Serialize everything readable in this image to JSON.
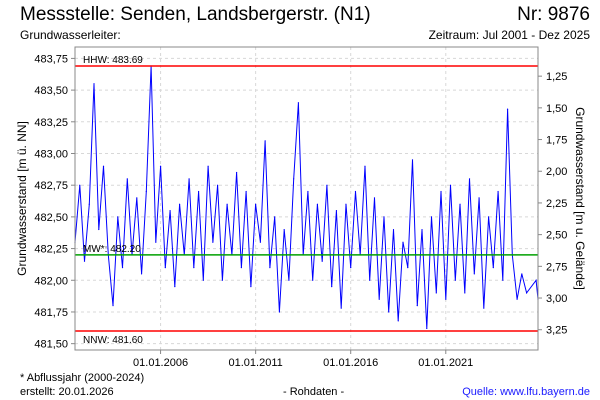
{
  "header": {
    "title": "Messstelle: Senden, Landsbergerstr. (N1)",
    "number": "Nr: 9876",
    "aquifer": "Grundwasserleiter:",
    "period": "Zeitraum: Jul 2001 - Dez 2025"
  },
  "footer": {
    "note": "* Abflussjahr (2000-2024)",
    "created": "erstellt:  20.01.2026",
    "data_type": "- Rohdaten -",
    "source": "Quelle: www.lfu.bayern.de"
  },
  "colors": {
    "series": "#0000ff",
    "hhw": "#ff0000",
    "nnw": "#ff0000",
    "mw": "#00a000",
    "grid": "#d8d8d8"
  },
  "chart_data": {
    "type": "line",
    "ylabel": "Grundwasserstand [m ü. NN]",
    "ylabel_right": "Grundwasserstand [m u. Gelände]",
    "ylim": [
      481.45,
      483.84
    ],
    "xlim": [
      2001.5,
      2025.85
    ],
    "ground_level": 484.86,
    "yticks": [
      481.5,
      481.75,
      482.0,
      482.25,
      482.5,
      482.75,
      483.0,
      483.25,
      483.5,
      483.75
    ],
    "ytick_labels": [
      "481,50",
      "481,75",
      "482,00",
      "482,25",
      "482,50",
      "482,75",
      "483,00",
      "483,25",
      "483,50",
      "483,75"
    ],
    "yticks_right": [
      1.25,
      1.5,
      1.75,
      2.0,
      2.25,
      2.5,
      2.75,
      3.0,
      3.25
    ],
    "ytick_labels_right": [
      "1,25",
      "1,50",
      "1,75",
      "2,00",
      "2,25",
      "2,50",
      "2,75",
      "3,00",
      "3,25"
    ],
    "xticks": [
      2006,
      2011,
      2016,
      2021
    ],
    "xtick_labels": [
      "01.01.2006",
      "01.01.2011",
      "01.01.2016",
      "01.01.2021"
    ],
    "reference_lines": [
      {
        "name": "HHW",
        "label": "HHW: 483.69",
        "value": 483.69
      },
      {
        "name": "MW",
        "label": "MW*: 482.20",
        "value": 482.2
      },
      {
        "name": "NNW",
        "label": "NNW: 481.60",
        "value": 481.6
      }
    ],
    "series": [
      {
        "name": "Grundwasserstand",
        "x": [
          2001.5,
          2001.75,
          2002.0,
          2002.25,
          2002.5,
          2002.75,
          2003.0,
          2003.25,
          2003.5,
          2003.75,
          2004.0,
          2004.25,
          2004.5,
          2004.75,
          2005.0,
          2005.25,
          2005.5,
          2005.75,
          2006.0,
          2006.25,
          2006.5,
          2006.75,
          2007.0,
          2007.25,
          2007.5,
          2007.75,
          2008.0,
          2008.25,
          2008.5,
          2008.75,
          2009.0,
          2009.25,
          2009.5,
          2009.75,
          2010.0,
          2010.25,
          2010.5,
          2010.75,
          2011.0,
          2011.25,
          2011.5,
          2011.75,
          2012.0,
          2012.25,
          2012.5,
          2012.75,
          2013.0,
          2013.25,
          2013.5,
          2013.75,
          2014.0,
          2014.25,
          2014.5,
          2014.75,
          2015.0,
          2015.25,
          2015.5,
          2015.75,
          2016.0,
          2016.25,
          2016.5,
          2016.75,
          2017.0,
          2017.25,
          2017.5,
          2017.75,
          2018.0,
          2018.25,
          2018.5,
          2018.75,
          2019.0,
          2019.25,
          2019.5,
          2019.75,
          2020.0,
          2020.25,
          2020.5,
          2020.75,
          2021.0,
          2021.25,
          2021.5,
          2021.75,
          2022.0,
          2022.25,
          2022.5,
          2022.75,
          2023.0,
          2023.25,
          2023.5,
          2023.75,
          2024.0,
          2024.25,
          2024.5,
          2024.75,
          2025.0,
          2025.25,
          2025.75,
          2025.85
        ],
        "y": [
          482.3,
          482.75,
          482.15,
          482.6,
          483.55,
          482.4,
          482.9,
          482.2,
          481.8,
          482.5,
          482.1,
          482.8,
          482.2,
          482.65,
          482.05,
          482.7,
          483.69,
          482.3,
          482.9,
          482.1,
          482.55,
          481.95,
          482.6,
          482.2,
          482.8,
          482.1,
          482.7,
          482.0,
          482.9,
          482.3,
          482.75,
          482.0,
          482.6,
          482.2,
          482.85,
          482.1,
          482.7,
          481.95,
          482.6,
          482.3,
          483.1,
          482.1,
          482.5,
          481.75,
          482.4,
          482.0,
          482.8,
          483.4,
          482.2,
          482.7,
          482.0,
          482.6,
          482.15,
          482.75,
          481.95,
          482.55,
          481.78,
          482.6,
          482.1,
          482.7,
          482.2,
          482.9,
          482.0,
          482.65,
          481.85,
          482.5,
          481.75,
          482.4,
          481.68,
          482.3,
          482.1,
          482.95,
          481.8,
          482.4,
          481.62,
          482.5,
          481.9,
          482.7,
          481.85,
          482.75,
          482.0,
          482.6,
          481.9,
          482.8,
          482.05,
          482.65,
          481.78,
          482.5,
          482.1,
          482.7,
          482.0,
          483.35,
          482.2,
          481.85,
          482.05,
          481.9,
          482.0,
          481.85
        ]
      }
    ]
  }
}
